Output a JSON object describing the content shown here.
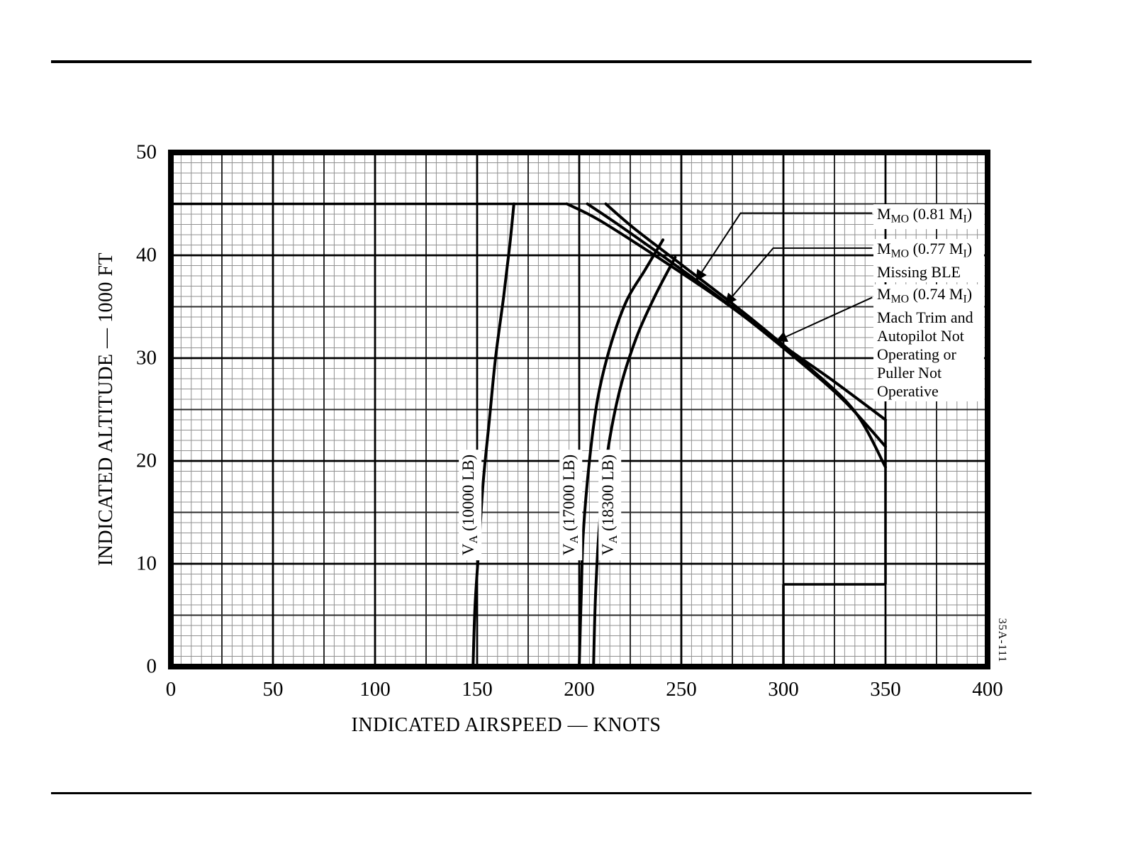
{
  "page": {
    "figure_code": "35A-111"
  },
  "chart_data": {
    "type": "line",
    "title": "",
    "xlabel": "INDICATED AIRSPEED — KNOTS",
    "ylabel": "INDICATED ALTITUDE — 1000 FT",
    "xlim": [
      0,
      400
    ],
    "ylim": [
      0,
      50
    ],
    "x_ticks": [
      0,
      50,
      100,
      150,
      200,
      250,
      300,
      350,
      400
    ],
    "y_ticks": [
      0,
      10,
      20,
      30,
      40,
      50
    ],
    "grid": {
      "on": true,
      "minor_x": 5,
      "minor_y": 1,
      "medium_x": 25,
      "medium_y": 5,
      "major_x": 50,
      "major_y": 10
    },
    "legend_position": "inside-right",
    "series": [
      {
        "id": "va-10000",
        "label": "V_{A} (10000 LB)",
        "points": [
          [
            148,
            0
          ],
          [
            149,
            6
          ],
          [
            151,
            12
          ],
          [
            153,
            18
          ],
          [
            156,
            24
          ],
          [
            159,
            30
          ],
          [
            163,
            36
          ],
          [
            166,
            41
          ],
          [
            168,
            45
          ]
        ],
        "label_center": [
          146.5,
          15.7
        ]
      },
      {
        "id": "va-17000",
        "label": "V_{A} (17000 LB)",
        "points": [
          [
            200,
            0
          ],
          [
            201,
            7
          ],
          [
            202,
            13
          ],
          [
            205,
            20
          ],
          [
            209,
            26
          ],
          [
            215,
            31
          ],
          [
            223,
            35.5
          ],
          [
            232,
            38.5
          ],
          [
            241,
            41.5
          ]
        ],
        "label_center": [
          196,
          15.7
        ]
      },
      {
        "id": "va-18300",
        "label": "V_{A} (18300 LB)",
        "points": [
          [
            207,
            0
          ],
          [
            208,
            7
          ],
          [
            210,
            14
          ],
          [
            214,
            21
          ],
          [
            220,
            27
          ],
          [
            228,
            32
          ],
          [
            237,
            36
          ],
          [
            247,
            39.8
          ]
        ],
        "label_center": [
          215,
          15.7
        ]
      },
      {
        "id": "mmo-081",
        "label": "M_{MO} (0.81 M_{I})",
        "points": [
          [
            194,
            45
          ],
          [
            210,
            43.4
          ],
          [
            240,
            39.6
          ],
          [
            270,
            35.6
          ],
          [
            300,
            31.2
          ],
          [
            325,
            27.7
          ],
          [
            350,
            24
          ]
        ]
      },
      {
        "id": "mmo-077",
        "label": "M_{MO} (0.77 M_{I}) Missing BLE",
        "points": [
          [
            204,
            45
          ],
          [
            219,
            43
          ],
          [
            246,
            39.2
          ],
          [
            276,
            34.8
          ],
          [
            306,
            30
          ],
          [
            330,
            25.8
          ],
          [
            350,
            21.4
          ]
        ]
      },
      {
        "id": "mmo-074",
        "label": "M_{MO} (0.74 M_{I}) Mach Trim and Autopilot Not Operating or Puller Not Operative",
        "points": [
          [
            213,
            45
          ],
          [
            227,
            42.6
          ],
          [
            252,
            38.8
          ],
          [
            282,
            34.2
          ],
          [
            312,
            29.2
          ],
          [
            335,
            24.8
          ],
          [
            350,
            19.4
          ]
        ]
      }
    ],
    "envelope": [
      {
        "id": "ceiling-45000",
        "points": [
          [
            0,
            45
          ],
          [
            194,
            45
          ]
        ]
      },
      {
        "id": "vmo-350",
        "points": [
          [
            350,
            24
          ],
          [
            350,
            8
          ]
        ]
      },
      {
        "id": "vmo-step-8000",
        "points": [
          [
            350,
            8
          ],
          [
            300,
            8
          ]
        ]
      },
      {
        "id": "vmo-300",
        "points": [
          [
            300,
            8
          ],
          [
            300,
            0
          ]
        ]
      }
    ],
    "annotations": [
      {
        "id": "mmo-081",
        "lines": [
          "M_{MO} (0.81 M_{I})"
        ],
        "text_pos": [
          344.1,
          45.0
        ],
        "leader": [
          [
            343.5,
            44.1
          ],
          [
            279,
            44.1
          ],
          [
            257.5,
            37.6
          ]
        ]
      },
      {
        "id": "mmo-077",
        "lines": [
          "M_{MO} (0.77 M_{I})",
          "Missing BLE"
        ],
        "text_pos": [
          344.1,
          41.6
        ],
        "leader": [
          [
            343.5,
            40.7
          ],
          [
            295,
            40.7
          ],
          [
            272,
            35.3
          ]
        ]
      },
      {
        "id": "mmo-074",
        "lines": [
          "M_{MO} (0.74 M_{I})",
          "Mach Trim and",
          "Autopilot Not",
          "Operating or",
          "Puller Not",
          "Operative"
        ],
        "text_pos": [
          344.1,
          37.2
        ],
        "leader": [
          [
            343.5,
            35.9
          ],
          [
            297,
            31.7
          ]
        ]
      }
    ]
  }
}
